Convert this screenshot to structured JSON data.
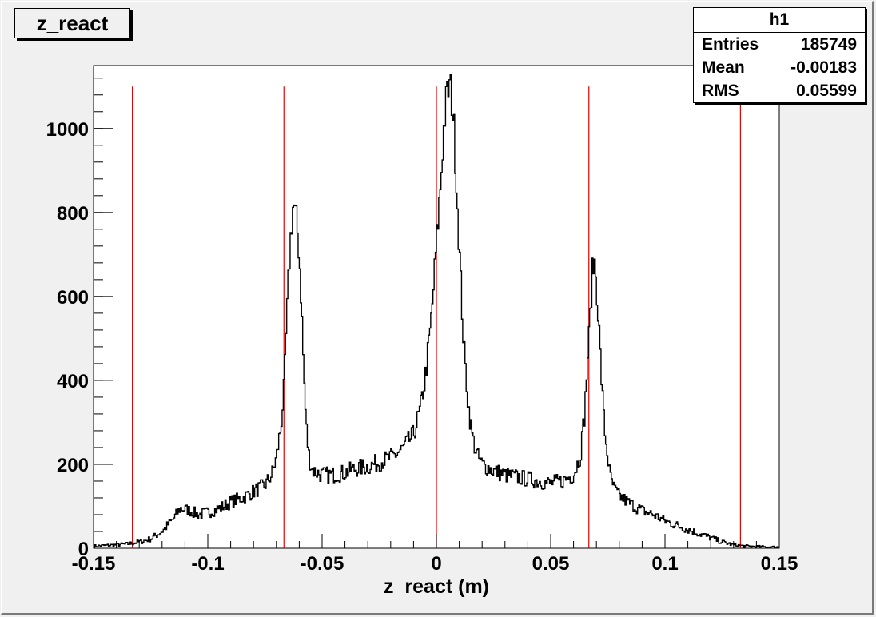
{
  "title_box": {
    "label": "z_react"
  },
  "stats_box": {
    "name": "h1",
    "rows": [
      {
        "label": "Entries",
        "value": "185749"
      },
      {
        "label": "Mean",
        "value": "-0.00183"
      },
      {
        "label": "RMS",
        "value": "0.05599"
      }
    ]
  },
  "colors": {
    "background": "#f0f0f0",
    "histogram_line": "#000000",
    "marker_lines": "#e00000"
  },
  "chart_data": {
    "type": "line",
    "title": "z_react",
    "xlabel": "z_react (m)",
    "ylabel": "",
    "xlim": [
      -0.15,
      0.15
    ],
    "ylim": [
      0,
      1150
    ],
    "x_ticks": [
      -0.15,
      -0.1,
      -0.05,
      0,
      0.05,
      0.1,
      0.15
    ],
    "x_tick_labels": [
      "-0.15",
      "-0.1",
      "-0.05",
      "0",
      "0.05",
      "0.1",
      "0.15"
    ],
    "y_ticks": [
      0,
      200,
      400,
      600,
      800,
      1000
    ],
    "y_tick_labels": [
      "0",
      "200",
      "400",
      "600",
      "800",
      "1000"
    ],
    "grid": false,
    "legend": "none",
    "vertical_lines": {
      "x": [
        -0.133,
        -0.0667,
        0.0,
        0.0667,
        0.133
      ],
      "y_top": 1100
    },
    "series": [
      {
        "x": [
          -0.15,
          -0.14,
          -0.135,
          -0.13,
          -0.125,
          -0.12,
          -0.115,
          -0.112,
          -0.108,
          -0.104,
          -0.1,
          -0.095,
          -0.09,
          -0.085,
          -0.08,
          -0.075,
          -0.072,
          -0.07,
          -0.068,
          -0.0665,
          -0.066,
          -0.065,
          -0.064,
          -0.063,
          -0.0625,
          -0.062,
          -0.061,
          -0.06,
          -0.059,
          -0.058,
          -0.057,
          -0.056,
          -0.055,
          -0.054,
          -0.052,
          -0.05,
          -0.045,
          -0.04,
          -0.035,
          -0.03,
          -0.025,
          -0.02,
          -0.015,
          -0.01,
          -0.007,
          -0.005,
          -0.003,
          -0.002,
          -0.001,
          0.0,
          0.001,
          0.002,
          0.003,
          0.004,
          0.005,
          0.006,
          0.007,
          0.008,
          0.009,
          0.01,
          0.011,
          0.012,
          0.014,
          0.016,
          0.018,
          0.02,
          0.025,
          0.03,
          0.035,
          0.04,
          0.045,
          0.05,
          0.055,
          0.06,
          0.063,
          0.065,
          0.066,
          0.067,
          0.068,
          0.069,
          0.07,
          0.071,
          0.072,
          0.073,
          0.074,
          0.075,
          0.076,
          0.078,
          0.08,
          0.085,
          0.09,
          0.095,
          0.1,
          0.105,
          0.11,
          0.115,
          0.12,
          0.125,
          0.13,
          0.135,
          0.14,
          0.145,
          0.15
        ],
        "y": [
          5,
          8,
          10,
          15,
          22,
          40,
          70,
          95,
          90,
          80,
          85,
          95,
          110,
          120,
          135,
          150,
          175,
          215,
          290,
          390,
          470,
          600,
          720,
          800,
          825,
          800,
          770,
          700,
          580,
          420,
          300,
          230,
          200,
          185,
          180,
          175,
          175,
          180,
          190,
          195,
          205,
          215,
          235,
          270,
          330,
          400,
          500,
          560,
          640,
          720,
          800,
          880,
          980,
          1050,
          1090,
          1100,
          1060,
          970,
          850,
          720,
          600,
          480,
          340,
          260,
          220,
          200,
          185,
          175,
          170,
          165,
          160,
          155,
          160,
          175,
          220,
          330,
          440,
          520,
          640,
          690,
          640,
          540,
          430,
          330,
          260,
          220,
          170,
          140,
          125,
          105,
          90,
          80,
          65,
          55,
          45,
          35,
          25,
          15,
          8,
          5,
          4,
          3,
          3
        ]
      }
    ]
  }
}
